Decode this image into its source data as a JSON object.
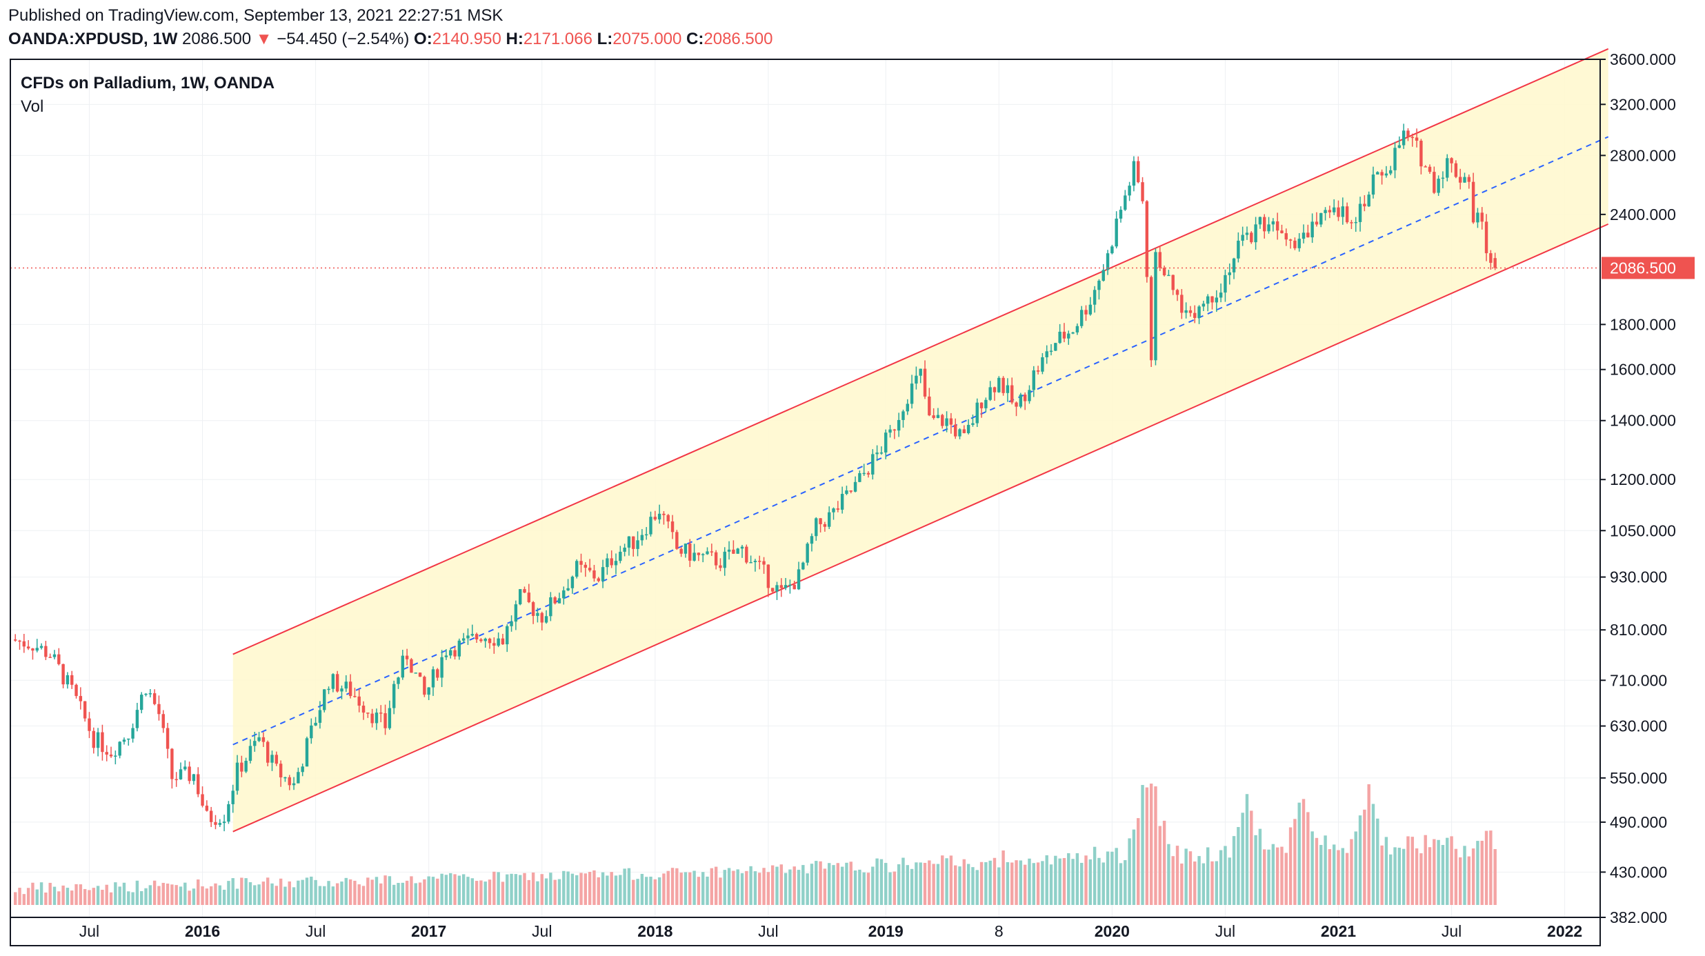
{
  "header": {
    "published": "Published on TradingView.com, September 13, 2021 22:27:51 MSK",
    "symbol": "OANDA:XPDUSD, 1W",
    "last": "2086.500",
    "change_arrow": "▼",
    "change": "−54.450 (−2.54%)",
    "o_label": "O:",
    "o_value": "2140.950",
    "h_label": "H:",
    "h_value": "2171.066",
    "l_label": "L:",
    "l_value": "2075.000",
    "c_label": "C:",
    "c_value": "2086.500"
  },
  "legend": {
    "title": "CFDs on Palladium, 1W, OANDA",
    "volume": "Vol"
  },
  "price_scale": {
    "labels": [
      "3600.000",
      "3200.000",
      "2800.000",
      "2400.000",
      "1800.000",
      "1600.000",
      "1400.000",
      "1200.000",
      "1050.000",
      "930.000",
      "810.000",
      "710.000",
      "630.000",
      "550.000",
      "490.000",
      "430.000",
      "382.000"
    ],
    "last_price_label": "2086.500"
  },
  "time_scale": {
    "labels": [
      {
        "text": "Jul",
        "bold": false
      },
      {
        "text": "2016",
        "bold": true
      },
      {
        "text": "Jul",
        "bold": false
      },
      {
        "text": "2017",
        "bold": true
      },
      {
        "text": "Jul",
        "bold": false
      },
      {
        "text": "2018",
        "bold": true
      },
      {
        "text": "Jul",
        "bold": false
      },
      {
        "text": "2019",
        "bold": true
      },
      {
        "text": "8",
        "bold": false
      },
      {
        "text": "2020",
        "bold": true
      },
      {
        "text": "Jul",
        "bold": false
      },
      {
        "text": "2021",
        "bold": true
      },
      {
        "text": "Jul",
        "bold": false
      },
      {
        "text": "2022",
        "bold": true
      }
    ]
  },
  "colors": {
    "up": "#26a69a",
    "down": "#ef5350",
    "up_volume": "#8fd0c8",
    "down_volume": "#f4a4a4",
    "channel_line": "#f23645",
    "channel_fill": "#fff8cc",
    "midline": "#2962ff",
    "grid": "#eef0f3"
  },
  "chart_data": {
    "type": "candlestick",
    "symbol": "OANDA:XPDUSD",
    "interval": "1W",
    "y_scale": "log",
    "ylim": [
      382,
      3600
    ],
    "x_range": [
      "2015-03",
      "2022-03"
    ],
    "last_price": 2086.5,
    "ohlc_last_bar": {
      "open": 2140.95,
      "high": 2171.066,
      "low": 2075.0,
      "close": 2086.5
    },
    "price_path": [
      {
        "date": "2015-03-09",
        "price": 790
      },
      {
        "date": "2015-04-13",
        "price": 780
      },
      {
        "date": "2015-05-11",
        "price": 760
      },
      {
        "date": "2015-06-15",
        "price": 690
      },
      {
        "date": "2015-07-20",
        "price": 610
      },
      {
        "date": "2015-08-17",
        "price": 590
      },
      {
        "date": "2015-09-14",
        "price": 620
      },
      {
        "date": "2015-10-12",
        "price": 700
      },
      {
        "date": "2015-11-02",
        "price": 650
      },
      {
        "date": "2015-11-23",
        "price": 550
      },
      {
        "date": "2015-12-28",
        "price": 555
      },
      {
        "date": "2016-01-18",
        "price": 495
      },
      {
        "date": "2016-02-15",
        "price": 500
      },
      {
        "date": "2016-03-07",
        "price": 560
      },
      {
        "date": "2016-04-11",
        "price": 610
      },
      {
        "date": "2016-05-09",
        "price": 560
      },
      {
        "date": "2016-06-06",
        "price": 540
      },
      {
        "date": "2016-07-04",
        "price": 620
      },
      {
        "date": "2016-08-01",
        "price": 710
      },
      {
        "date": "2016-09-05",
        "price": 690
      },
      {
        "date": "2016-10-10",
        "price": 650
      },
      {
        "date": "2016-10-31",
        "price": 630
      },
      {
        "date": "2016-11-14",
        "price": 700
      },
      {
        "date": "2016-12-05",
        "price": 760
      },
      {
        "date": "2017-01-02",
        "price": 680
      },
      {
        "date": "2017-02-06",
        "price": 770
      },
      {
        "date": "2017-03-06",
        "price": 780
      },
      {
        "date": "2017-04-03",
        "price": 800
      },
      {
        "date": "2017-05-08",
        "price": 790
      },
      {
        "date": "2017-06-05",
        "price": 880
      },
      {
        "date": "2017-07-10",
        "price": 840
      },
      {
        "date": "2017-08-07",
        "price": 890
      },
      {
        "date": "2017-09-04",
        "price": 950
      },
      {
        "date": "2017-10-09",
        "price": 930
      },
      {
        "date": "2017-11-06",
        "price": 990
      },
      {
        "date": "2017-12-04",
        "price": 1020
      },
      {
        "date": "2018-01-15",
        "price": 1110
      },
      {
        "date": "2018-02-12",
        "price": 1000
      },
      {
        "date": "2018-03-19",
        "price": 980
      },
      {
        "date": "2018-04-23",
        "price": 970
      },
      {
        "date": "2018-05-28",
        "price": 1000
      },
      {
        "date": "2018-06-25",
        "price": 950
      },
      {
        "date": "2018-07-30",
        "price": 890
      },
      {
        "date": "2018-08-27",
        "price": 930
      },
      {
        "date": "2018-09-24",
        "price": 1060
      },
      {
        "date": "2018-10-22",
        "price": 1100
      },
      {
        "date": "2018-11-26",
        "price": 1180
      },
      {
        "date": "2018-12-24",
        "price": 1260
      },
      {
        "date": "2019-01-21",
        "price": 1350
      },
      {
        "date": "2019-02-18",
        "price": 1500
      },
      {
        "date": "2019-03-11",
        "price": 1580
      },
      {
        "date": "2019-03-25",
        "price": 1400
      },
      {
        "date": "2019-04-22",
        "price": 1400
      },
      {
        "date": "2019-05-20",
        "price": 1330
      },
      {
        "date": "2019-06-17",
        "price": 1480
      },
      {
        "date": "2019-07-15",
        "price": 1560
      },
      {
        "date": "2019-08-12",
        "price": 1440
      },
      {
        "date": "2019-09-09",
        "price": 1580
      },
      {
        "date": "2019-10-14",
        "price": 1720
      },
      {
        "date": "2019-11-11",
        "price": 1780
      },
      {
        "date": "2019-12-09",
        "price": 1920
      },
      {
        "date": "2020-01-06",
        "price": 2150
      },
      {
        "date": "2020-01-20",
        "price": 2350
      },
      {
        "date": "2020-02-17",
        "price": 2700
      },
      {
        "date": "2020-03-02",
        "price": 2500
      },
      {
        "date": "2020-03-16",
        "price": 1600
      },
      {
        "date": "2020-03-23",
        "price": 2200
      },
      {
        "date": "2020-04-13",
        "price": 2000
      },
      {
        "date": "2020-05-11",
        "price": 1850
      },
      {
        "date": "2020-06-08",
        "price": 1900
      },
      {
        "date": "2020-07-06",
        "price": 2000
      },
      {
        "date": "2020-08-03",
        "price": 2200
      },
      {
        "date": "2020-09-07",
        "price": 2350
      },
      {
        "date": "2020-10-05",
        "price": 2350
      },
      {
        "date": "2020-11-02",
        "price": 2250
      },
      {
        "date": "2020-12-07",
        "price": 2350
      },
      {
        "date": "2021-01-04",
        "price": 2400
      },
      {
        "date": "2021-02-08",
        "price": 2400
      },
      {
        "date": "2021-03-08",
        "price": 2600
      },
      {
        "date": "2021-04-05",
        "price": 2750
      },
      {
        "date": "2021-04-26",
        "price": 2950
      },
      {
        "date": "2021-05-17",
        "price": 2850
      },
      {
        "date": "2021-06-14",
        "price": 2600
      },
      {
        "date": "2021-07-05",
        "price": 2750
      },
      {
        "date": "2021-07-26",
        "price": 2650
      },
      {
        "date": "2021-08-09",
        "price": 2650
      },
      {
        "date": "2021-08-16",
        "price": 2350
      },
      {
        "date": "2021-08-30",
        "price": 2400
      },
      {
        "date": "2021-09-06",
        "price": 2140
      },
      {
        "date": "2021-09-13",
        "price": 2086.5
      }
    ],
    "volume_spikes": [
      {
        "date": "2020-02-24",
        "side": "up"
      },
      {
        "date": "2020-03-16",
        "side": "down"
      },
      {
        "date": "2020-08-10",
        "side": "up"
      },
      {
        "date": "2020-11-09",
        "side": "down"
      },
      {
        "date": "2021-02-22",
        "side": "down"
      }
    ],
    "drawings": {
      "parallel_channel": {
        "lower": [
          {
            "date": "2016-02-22",
            "price": 478
          },
          {
            "date": "2022-03-14",
            "price": 2340
          }
        ],
        "upper": [
          {
            "date": "2016-02-22",
            "price": 760
          },
          {
            "date": "2022-03-14",
            "price": 3700
          }
        ],
        "middle": [
          {
            "date": "2016-02-22",
            "price": 600
          },
          {
            "date": "2022-03-14",
            "price": 2940
          }
        ]
      },
      "last_price_line": 2086.5
    }
  }
}
